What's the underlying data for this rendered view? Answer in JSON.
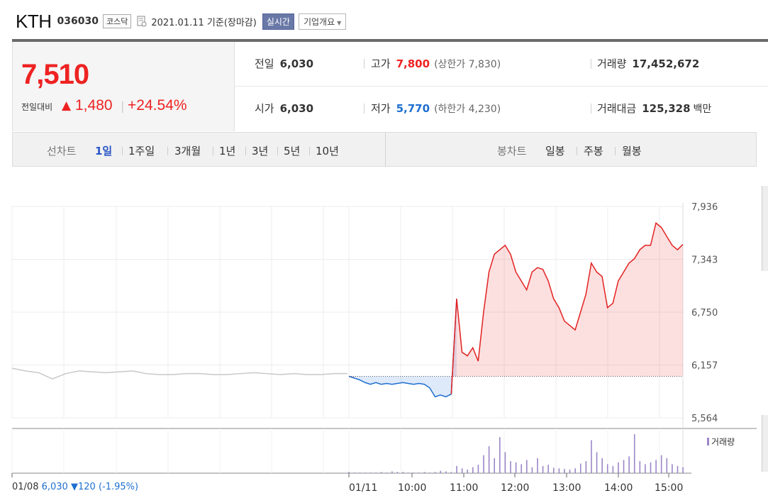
{
  "header": {
    "stock_name": "KTH",
    "stock_code": "036030",
    "market": "코스닥",
    "date_text": "2021.01.11  기준(장마감)",
    "realtime_label": "실시간",
    "corp_label": "기업개요"
  },
  "price": {
    "current": "7,510",
    "diff_label": "전일대비",
    "diff_value": "1,480",
    "diff_pct": "+24.54%"
  },
  "stats": {
    "prev_label": "전일",
    "prev_value": "6,030",
    "high_label": "고가",
    "high_value": "7,800",
    "upper_limit": "(상한가 7,830)",
    "volume_label": "거래량",
    "volume_value": "17,452,672",
    "open_label": "시가",
    "open_value": "6,030",
    "low_label": "저가",
    "low_value": "5,770",
    "lower_limit": "(하한가 4,230)",
    "amount_label": "거래대금",
    "amount_value": "125,328",
    "amount_unit": "백만"
  },
  "tabs": {
    "line_label": "선차트",
    "line_items": [
      "1일",
      "1주일",
      "3개월",
      "1년",
      "3년",
      "5년",
      "10년"
    ],
    "active": "1일",
    "candle_label": "봉차트",
    "candle_items": [
      "일봉",
      "주봉",
      "월봉"
    ]
  },
  "chart_data": {
    "type": "line",
    "y_ticks": [
      "7,936",
      "7,343",
      "6,750",
      "6,157",
      "5,564"
    ],
    "ylim": [
      5564,
      7936
    ],
    "base_price": 6030,
    "x_labels": [
      "01/08",
      "01/11",
      "10:00",
      "11:00",
      "12:00",
      "13:00",
      "14:00",
      "15:00"
    ],
    "prev_day_series": [
      6120,
      6090,
      6070,
      6000,
      6060,
      6090,
      6080,
      6070,
      6080,
      6090,
      6060,
      6050,
      6050,
      6060,
      6060,
      6050,
      6050,
      6060,
      6070,
      6060,
      6050,
      6060,
      6050,
      6050,
      6060,
      6060
    ],
    "today_series": [
      6030,
      6010,
      5990,
      5960,
      5940,
      5960,
      5940,
      5950,
      5940,
      5950,
      5960,
      5950,
      5940,
      5950,
      5940,
      5900,
      5800,
      5820,
      5800,
      5830,
      6900,
      6300,
      6260,
      6350,
      6200,
      6750,
      7200,
      7400,
      7450,
      7500,
      7400,
      7200,
      7100,
      7000,
      7200,
      7250,
      7230,
      7100,
      6900,
      6800,
      6650,
      6600,
      6550,
      6750,
      6950,
      7300,
      7200,
      7150,
      6800,
      6850,
      7100,
      7200,
      7300,
      7350,
      7450,
      7500,
      7500,
      7750,
      7700,
      7600,
      7500,
      7450,
      7510
    ],
    "volume_series": [
      2,
      1,
      1,
      1,
      1,
      1,
      2,
      1,
      3,
      2,
      2,
      1,
      1,
      1,
      2,
      1,
      2,
      4,
      3,
      2,
      12,
      8,
      6,
      10,
      14,
      30,
      45,
      25,
      60,
      35,
      20,
      18,
      15,
      22,
      10,
      25,
      12,
      14,
      9,
      8,
      7,
      6,
      8,
      16,
      20,
      55,
      35,
      25,
      15,
      12,
      18,
      22,
      28,
      65,
      20,
      15,
      18,
      22,
      30,
      25,
      15,
      12,
      10
    ]
  },
  "prev_info": {
    "date": "01/08",
    "price": "6,030",
    "arrow": "▼",
    "change": "120",
    "pct": "(-1.95%)"
  },
  "volume_legend": "거래량",
  "colors": {
    "up": "#e22222",
    "down": "#1e6fd0",
    "neutral_line": "#c8c8c8",
    "volume": "#9b86c8"
  }
}
